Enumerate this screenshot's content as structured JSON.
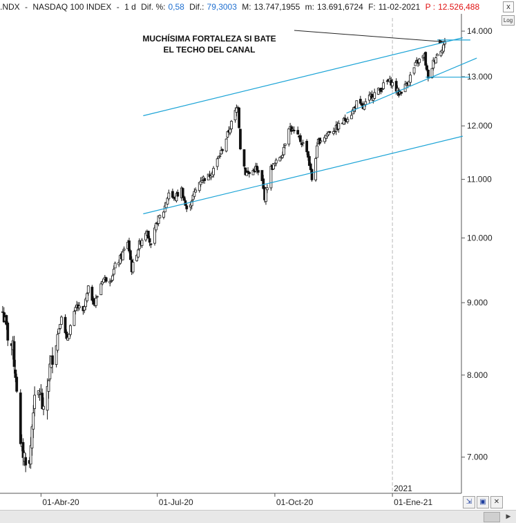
{
  "header": {
    "symbol": ".NDX",
    "name": "NASDAQ 100 INDEX",
    "period": "1 d",
    "dif_pct_label": "Dif. %:",
    "dif_pct_value": "0,58",
    "dif_label": "Dif.:",
    "dif_value": "79,3003",
    "max_label": "M:",
    "max_value": "13.747,1955",
    "min_label": "m:",
    "min_value": "13.691,6724",
    "date_label": "F:",
    "date_value": "11-02-2021",
    "price_label": "P :",
    "price_value": "12.526,488"
  },
  "controls": {
    "log_label": "Log",
    "close_label": "x",
    "toolbar_icons": [
      "zoom-icon",
      "save-icon",
      "close-icon"
    ]
  },
  "colors": {
    "candle": "#111111",
    "trendline": "#1aa3d6",
    "annotation_arrow": "#222222",
    "price_red": "#e01010",
    "value_blue": "#1e6fd0"
  },
  "chart_data": {
    "type": "candlestick",
    "scale": "log",
    "ylim": [
      6600,
      14400
    ],
    "yticks": [
      {
        "value": 7000,
        "label": "7.000"
      },
      {
        "value": 8000,
        "label": "8.000"
      },
      {
        "value": 9000,
        "label": "9.000"
      },
      {
        "value": 10000,
        "label": "10.000"
      },
      {
        "value": 11000,
        "label": "11.000"
      },
      {
        "value": 12000,
        "label": "12.000"
      },
      {
        "value": 13000,
        "label": "13.000"
      },
      {
        "value": 14000,
        "label": "14.000"
      }
    ],
    "xlim": [
      "2020-03-01",
      "2021-02-24"
    ],
    "xticks": [
      {
        "date": "2020-04-01",
        "label": "01-Abr-20"
      },
      {
        "date": "2020-07-01",
        "label": "01-Jul-20"
      },
      {
        "date": "2020-10-01",
        "label": "01-Oct-20"
      },
      {
        "date": "2021-01-01",
        "label": "01-Ene-21"
      }
    ],
    "year_marker": {
      "date": "2021-01-01",
      "label": "2021"
    },
    "grid": false,
    "price_path": [
      [
        "2020-03-02",
        8870
      ],
      [
        "2020-03-06",
        8530
      ],
      [
        "2020-03-10",
        8350
      ],
      [
        "2020-03-13",
        7850
      ],
      [
        "2020-03-16",
        7100
      ],
      [
        "2020-03-19",
        7020
      ],
      [
        "2020-03-23",
        6900
      ],
      [
        "2020-03-26",
        7600
      ],
      [
        "2020-03-31",
        7810
      ],
      [
        "2020-04-03",
        7500
      ],
      [
        "2020-04-08",
        8100
      ],
      [
        "2020-04-14",
        8550
      ],
      [
        "2020-04-17",
        8830
      ],
      [
        "2020-04-21",
        8450
      ],
      [
        "2020-04-24",
        8660
      ],
      [
        "2020-04-29",
        8950
      ],
      [
        "2020-05-04",
        8850
      ],
      [
        "2020-05-08",
        9200
      ],
      [
        "2020-05-13",
        8980
      ],
      [
        "2020-05-19",
        9350
      ],
      [
        "2020-05-26",
        9370
      ],
      [
        "2020-05-29",
        9550
      ],
      [
        "2020-06-03",
        9700
      ],
      [
        "2020-06-08",
        9950
      ],
      [
        "2020-06-11",
        9500
      ],
      [
        "2020-06-17",
        9900
      ],
      [
        "2020-06-23",
        10150
      ],
      [
        "2020-06-26",
        9850
      ],
      [
        "2020-07-01",
        10280
      ],
      [
        "2020-07-06",
        10450
      ],
      [
        "2020-07-10",
        10770
      ],
      [
        "2020-07-14",
        10650
      ],
      [
        "2020-07-20",
        10820
      ],
      [
        "2020-07-24",
        10450
      ],
      [
        "2020-07-29",
        10700
      ],
      [
        "2020-08-04",
        11000
      ],
      [
        "2020-08-10",
        11050
      ],
      [
        "2020-08-14",
        11200
      ],
      [
        "2020-08-20",
        11500
      ],
      [
        "2020-08-26",
        11900
      ],
      [
        "2020-09-02",
        12420
      ],
      [
        "2020-09-04",
        11600
      ],
      [
        "2020-09-08",
        11120
      ],
      [
        "2020-09-11",
        11100
      ],
      [
        "2020-09-16",
        11200
      ],
      [
        "2020-09-21",
        10950
      ],
      [
        "2020-09-23",
        10690
      ],
      [
        "2020-09-28",
        11200
      ],
      [
        "2020-10-02",
        11300
      ],
      [
        "2020-10-07",
        11500
      ],
      [
        "2020-10-12",
        12000
      ],
      [
        "2020-10-15",
        11900
      ],
      [
        "2020-10-20",
        11750
      ],
      [
        "2020-10-26",
        11550
      ],
      [
        "2020-10-30",
        11000
      ],
      [
        "2020-11-04",
        11700
      ],
      [
        "2020-11-09",
        11800
      ],
      [
        "2020-11-13",
        11900
      ],
      [
        "2020-11-18",
        11950
      ],
      [
        "2020-11-24",
        12100
      ],
      [
        "2020-11-30",
        12250
      ],
      [
        "2020-12-04",
        12450
      ],
      [
        "2020-12-09",
        12350
      ],
      [
        "2020-12-15",
        12600
      ],
      [
        "2020-12-21",
        12700
      ],
      [
        "2020-12-28",
        12900
      ],
      [
        "2020-12-31",
        12890
      ],
      [
        "2021-01-06",
        12650
      ],
      [
        "2021-01-11",
        12800
      ],
      [
        "2021-01-14",
        12950
      ],
      [
        "2021-01-20",
        13300
      ],
      [
        "2021-01-26",
        13450
      ],
      [
        "2021-01-29",
        12930
      ],
      [
        "2021-02-03",
        13400
      ],
      [
        "2021-02-08",
        13600
      ],
      [
        "2021-02-11",
        13730
      ]
    ],
    "trendlines": [
      {
        "name": "upper-channel",
        "from": [
          "2020-06-20",
          12200
        ],
        "to": [
          "2021-02-25",
          13850
        ]
      },
      {
        "name": "lower-channel",
        "from": [
          "2020-06-20",
          10400
        ],
        "to": [
          "2021-02-25",
          11800
        ]
      },
      {
        "name": "short-term-support",
        "from": [
          "2020-11-26",
          12250
        ],
        "to": [
          "2021-03-08",
          13400
        ]
      },
      {
        "name": "upper-resistance",
        "from": [
          "2021-02-05",
          13800
        ],
        "to": [
          "2021-03-03",
          13800
        ]
      },
      {
        "name": "lower-resistance",
        "from": [
          "2021-01-27",
          12990
        ],
        "to": [
          "2021-03-03",
          12990
        ]
      }
    ],
    "annotation": {
      "line1": "MUCHÍSIMA FORTALEZA SI BATE",
      "line2": "EL TECHO DEL CANAL",
      "arrow_to": [
        "2021-02-10",
        13760
      ]
    }
  }
}
